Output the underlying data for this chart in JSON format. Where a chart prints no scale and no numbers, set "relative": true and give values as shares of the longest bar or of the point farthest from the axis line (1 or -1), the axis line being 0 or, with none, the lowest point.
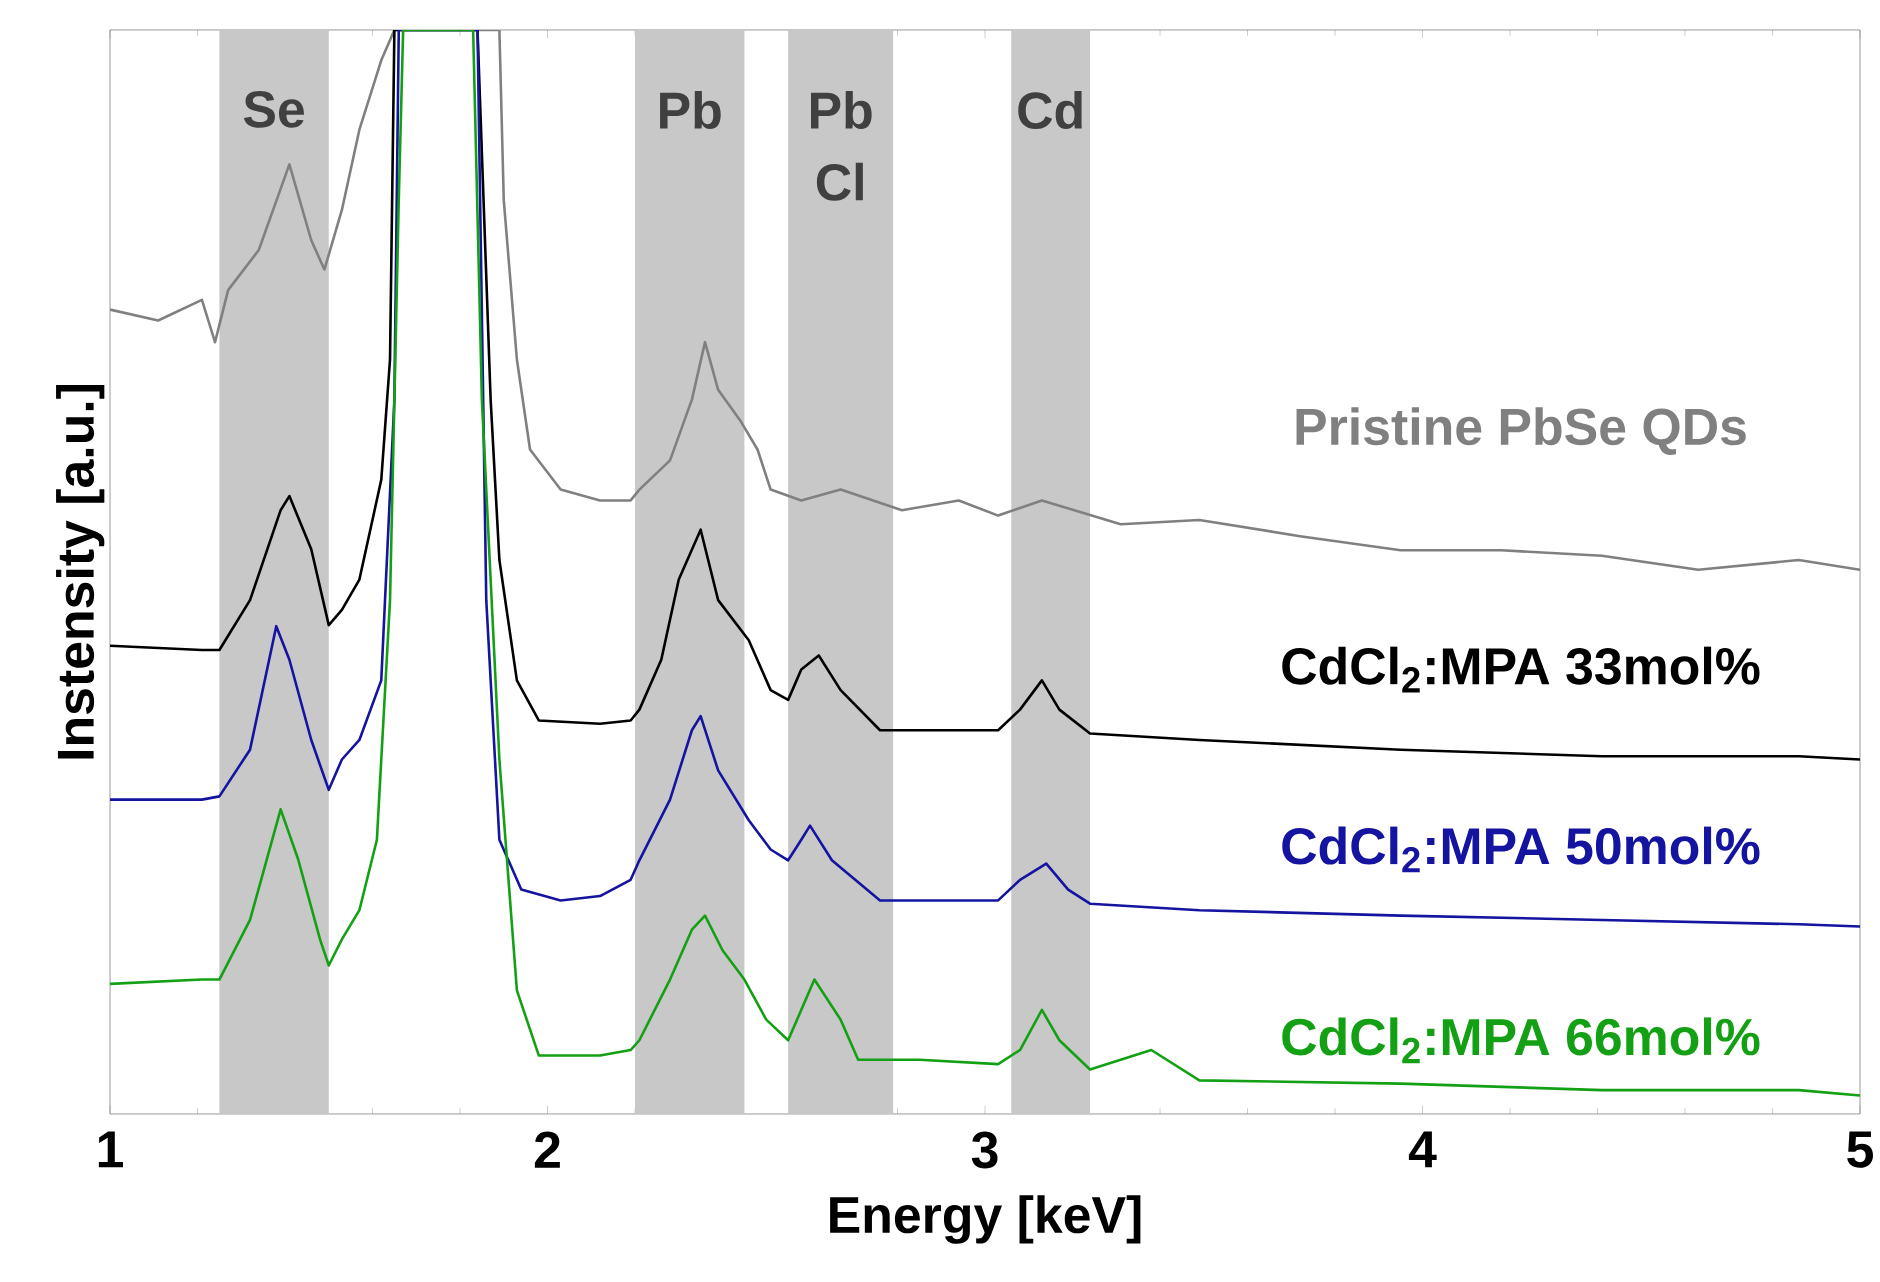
{
  "chart_data": {
    "type": "line",
    "xlabel": "Energy [keV]",
    "ylabel": "Instensity [a.u.]",
    "xlim": [
      1,
      5
    ],
    "xticks": [
      1,
      2,
      3,
      4,
      5
    ],
    "relative": true,
    "bands": [
      {
        "axis": "x",
        "from": 1.25,
        "to": 1.5,
        "label": "Se",
        "color": "#c8c8c8"
      },
      {
        "axis": "x",
        "from": 2.2,
        "to": 2.45,
        "label": "Pb",
        "color": "#c8c8c8"
      },
      {
        "axis": "x",
        "from": 2.55,
        "to": 2.79,
        "label": "Pb Cl",
        "color": "#c8c8c8"
      },
      {
        "axis": "x",
        "from": 3.06,
        "to": 3.24,
        "label": "Cd",
        "color": "#c8c8c8"
      }
    ],
    "series": [
      {
        "name": "Pristine PbSe QDs",
        "color": "#808080",
        "x": [
          1.0,
          1.11,
          1.21,
          1.24,
          1.27,
          1.34,
          1.41,
          1.46,
          1.49,
          1.53,
          1.57,
          1.62,
          1.65,
          1.89,
          1.9,
          1.93,
          1.96,
          2.03,
          2.12,
          2.19,
          2.21,
          2.28,
          2.33,
          2.36,
          2.39,
          2.44,
          2.48,
          2.51,
          2.58,
          2.67,
          2.81,
          2.94,
          3.03,
          3.13,
          3.31,
          3.49,
          3.72,
          3.95,
          4.18,
          4.41,
          4.63,
          4.86,
          5.0
        ],
        "values": [
          0.742,
          0.732,
          0.751,
          0.712,
          0.76,
          0.797,
          0.876,
          0.806,
          0.779,
          0.834,
          0.908,
          0.972,
          1.0,
          1.0,
          0.843,
          0.696,
          0.613,
          0.576,
          0.566,
          0.566,
          0.576,
          0.603,
          0.659,
          0.712,
          0.668,
          0.64,
          0.613,
          0.576,
          0.566,
          0.576,
          0.557,
          0.566,
          0.552,
          0.566,
          0.544,
          0.548,
          0.533,
          0.52,
          0.52,
          0.515,
          0.502,
          0.511,
          0.502
        ]
      },
      {
        "name": "CdCl$_{2}$:MPA 33mol%",
        "color": "#000000",
        "x": [
          1.0,
          1.21,
          1.25,
          1.32,
          1.39,
          1.41,
          1.46,
          1.5,
          1.53,
          1.57,
          1.62,
          1.64,
          1.65,
          1.84,
          1.87,
          1.89,
          1.93,
          1.98,
          2.12,
          2.19,
          2.21,
          2.26,
          2.3,
          2.35,
          2.39,
          2.46,
          2.51,
          2.55,
          2.58,
          2.62,
          2.67,
          2.76,
          2.85,
          3.03,
          3.08,
          3.13,
          3.17,
          3.24,
          3.49,
          3.95,
          4.41,
          4.86,
          5.0
        ],
        "values": [
          0.432,
          0.428,
          0.428,
          0.474,
          0.557,
          0.57,
          0.521,
          0.451,
          0.465,
          0.493,
          0.585,
          0.696,
          1.0,
          1.0,
          0.659,
          0.511,
          0.4,
          0.363,
          0.36,
          0.363,
          0.373,
          0.419,
          0.493,
          0.539,
          0.474,
          0.437,
          0.391,
          0.382,
          0.41,
          0.423,
          0.391,
          0.354,
          0.354,
          0.354,
          0.373,
          0.4,
          0.373,
          0.351,
          0.345,
          0.336,
          0.33,
          0.33,
          0.327
        ]
      },
      {
        "name": "CdCl$_{2}$:MPA 50mol%",
        "color": "#1414a0",
        "x": [
          1.0,
          1.21,
          1.25,
          1.32,
          1.38,
          1.41,
          1.46,
          1.5,
          1.53,
          1.57,
          1.62,
          1.65,
          1.66,
          1.84,
          1.86,
          1.89,
          1.94,
          2.03,
          2.12,
          2.19,
          2.21,
          2.28,
          2.33,
          2.35,
          2.39,
          2.46,
          2.51,
          2.55,
          2.58,
          2.6,
          2.65,
          2.76,
          2.9,
          3.03,
          3.08,
          3.14,
          3.19,
          3.24,
          3.49,
          3.95,
          4.41,
          4.86,
          5.0
        ],
        "values": [
          0.29,
          0.29,
          0.293,
          0.336,
          0.45,
          0.419,
          0.345,
          0.299,
          0.327,
          0.345,
          0.4,
          0.659,
          1.0,
          1.0,
          0.474,
          0.253,
          0.207,
          0.197,
          0.201,
          0.216,
          0.234,
          0.29,
          0.354,
          0.367,
          0.317,
          0.271,
          0.244,
          0.234,
          0.253,
          0.266,
          0.234,
          0.197,
          0.197,
          0.197,
          0.216,
          0.231,
          0.207,
          0.194,
          0.188,
          0.183,
          0.179,
          0.175,
          0.173
        ]
      },
      {
        "name": "CdCl$_{2}$:MPA 66mol%",
        "color": "#14a014",
        "x": [
          1.0,
          1.21,
          1.25,
          1.32,
          1.39,
          1.43,
          1.48,
          1.5,
          1.53,
          1.57,
          1.61,
          1.64,
          1.66,
          1.67,
          1.83,
          1.85,
          1.89,
          1.93,
          1.98,
          2.12,
          2.19,
          2.21,
          2.28,
          2.33,
          2.36,
          2.4,
          2.45,
          2.5,
          2.55,
          2.58,
          2.61,
          2.67,
          2.71,
          2.85,
          3.03,
          3.08,
          3.13,
          3.17,
          3.24,
          3.31,
          3.38,
          3.49,
          3.95,
          4.41,
          4.86,
          5.0
        ],
        "values": [
          0.12,
          0.124,
          0.124,
          0.179,
          0.281,
          0.235,
          0.161,
          0.137,
          0.161,
          0.188,
          0.253,
          0.474,
          0.843,
          1.0,
          1.0,
          0.659,
          0.327,
          0.114,
          0.054,
          0.054,
          0.059,
          0.068,
          0.124,
          0.17,
          0.183,
          0.151,
          0.124,
          0.087,
          0.068,
          0.096,
          0.124,
          0.087,
          0.05,
          0.05,
          0.046,
          0.059,
          0.096,
          0.068,
          0.041,
          0.05,
          0.059,
          0.031,
          0.028,
          0.022,
          0.022,
          0.017
        ]
      }
    ]
  }
}
